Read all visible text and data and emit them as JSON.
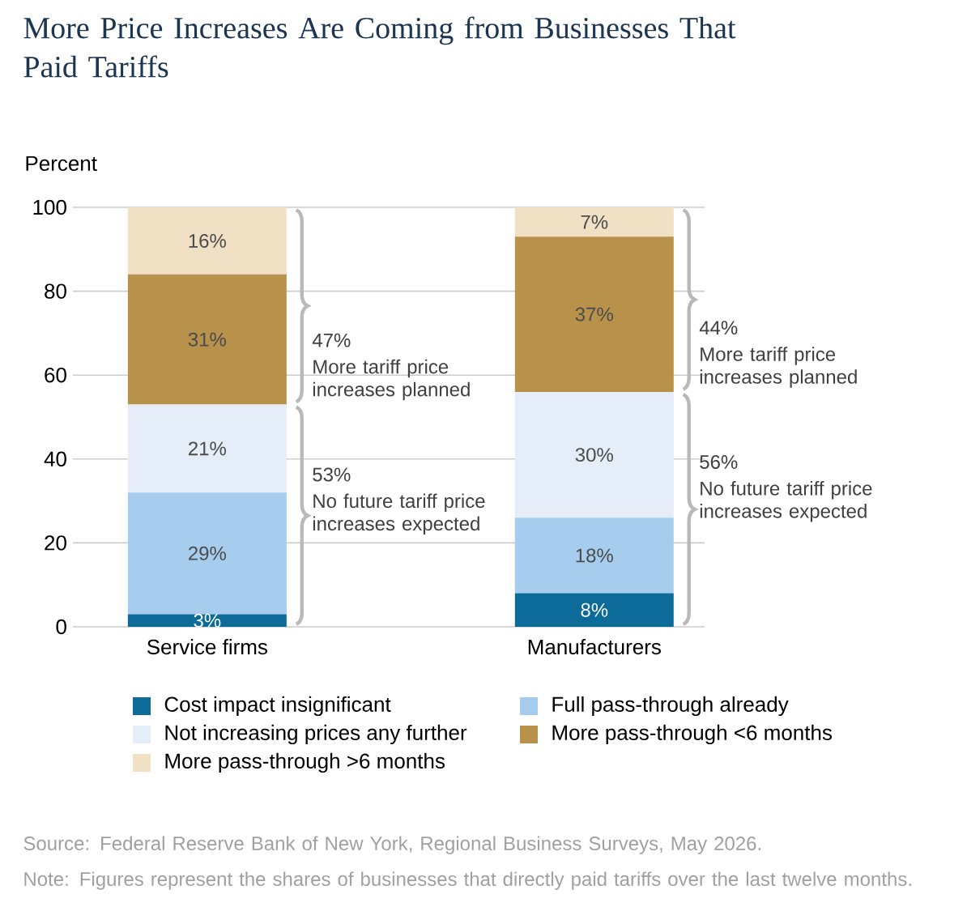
{
  "chart_data": {
    "type": "bar",
    "stacked": true,
    "title": "More Price Increases Are Coming from Businesses That Paid Tariffs",
    "ylabel": "Percent",
    "categories": [
      "Service firms",
      "Manufacturers"
    ],
    "series": [
      {
        "name": "Cost impact insignificant",
        "color": "#0d6b99",
        "values": [
          3,
          8
        ],
        "value_labels": [
          "3%",
          "8%"
        ]
      },
      {
        "name": "Full pass-through already",
        "color": "#a6cdee",
        "values": [
          29,
          18
        ],
        "value_labels": [
          "29%",
          "18%"
        ]
      },
      {
        "name": "Not increasing prices any further",
        "color": "#e4edf8",
        "values": [
          21,
          30
        ],
        "value_labels": [
          "21%",
          "30%"
        ]
      },
      {
        "name": "More pass-through <6 months",
        "color": "#b8914b",
        "values": [
          31,
          37
        ],
        "value_labels": [
          "31%",
          "37%"
        ]
      },
      {
        "name": "More pass-through >6 months",
        "color": "#f0e0c4",
        "values": [
          16,
          7
        ],
        "value_labels": [
          "16%",
          "7%"
        ]
      }
    ],
    "ylim": [
      0,
      100
    ],
    "yticks": [
      0,
      20,
      40,
      60,
      80,
      100
    ],
    "grid": "y",
    "legend": "bottom",
    "annotations": [
      "47%",
      "More tariff price increases planned",
      "53%",
      "No future tariff price increases expected",
      "44%",
      "More tariff price increases planned",
      "56%",
      "No future tariff price increases expected",
      "Source: Federal Reserve Bank of New York, Regional Business Surveys, May 2026.",
      "Note: Figures represent the shares of businesses that directly paid tariffs over the last twelve months."
    ]
  }
}
